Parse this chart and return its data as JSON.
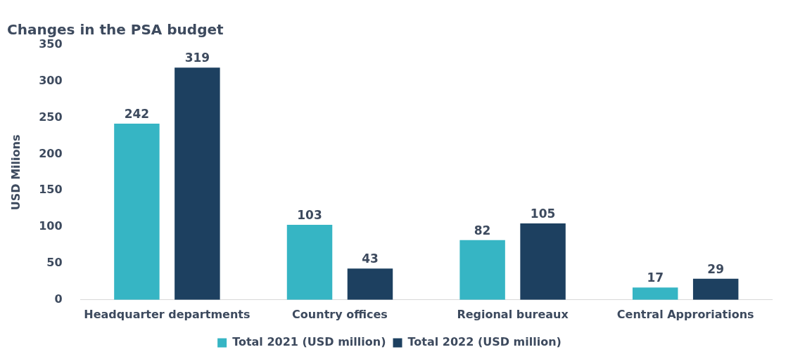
{
  "chart_data": {
    "type": "bar",
    "title": "Changes in the PSA budget",
    "ylabel": "USD Milions",
    "categories": [
      "Headquarter departments",
      "Country offices",
      "Regional bureaux",
      "Central Approriations"
    ],
    "series": [
      {
        "name": "Total 2021 (USD million)",
        "color": "#36b5c4",
        "values": [
          242,
          103,
          82,
          17
        ]
      },
      {
        "name": "Total 2022 (USD million)",
        "color": "#1d4060",
        "values": [
          319,
          43,
          105,
          29
        ]
      }
    ],
    "ylim": [
      0,
      350
    ],
    "yticks": [
      0,
      50,
      100,
      150,
      200,
      250,
      300,
      350
    ],
    "grid": false,
    "legend": "bottom",
    "data_labels": true
  }
}
